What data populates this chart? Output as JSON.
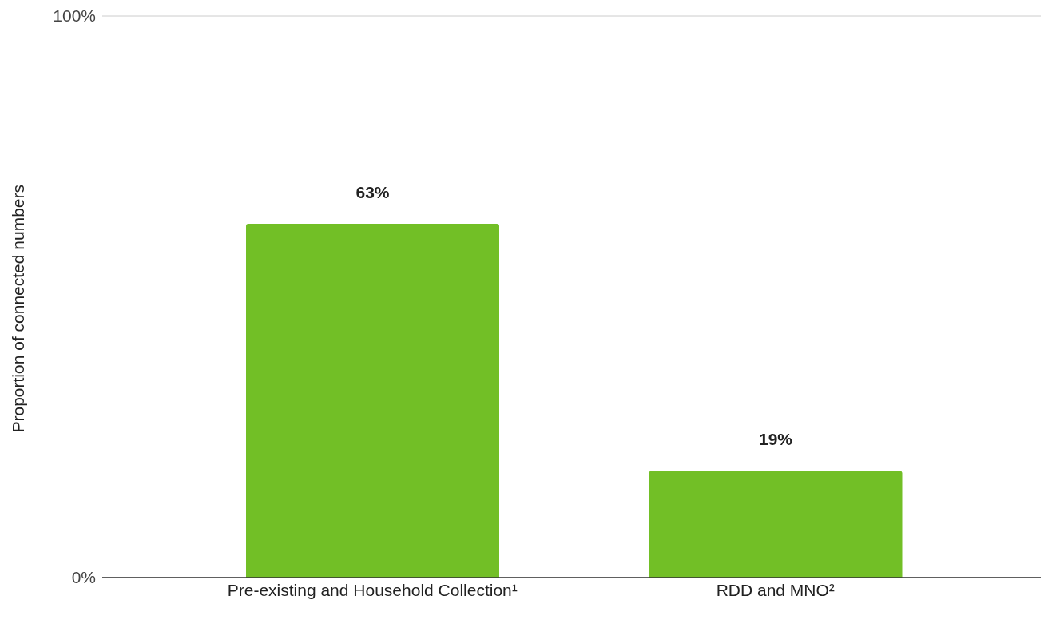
{
  "chart_data": {
    "type": "bar",
    "ylabel": "Proportion of connected numbers",
    "categories": [
      "Pre-existing and Household Collection¹",
      "RDD and MNO²"
    ],
    "values": [
      63,
      19
    ],
    "value_labels": [
      "63%",
      "19%"
    ],
    "color": "#72bf26",
    "ylim": [
      0,
      100
    ],
    "yticks": [
      {
        "value": 0,
        "label": "0%"
      },
      {
        "value": 100,
        "label": "100%"
      }
    ],
    "grid": "y"
  }
}
